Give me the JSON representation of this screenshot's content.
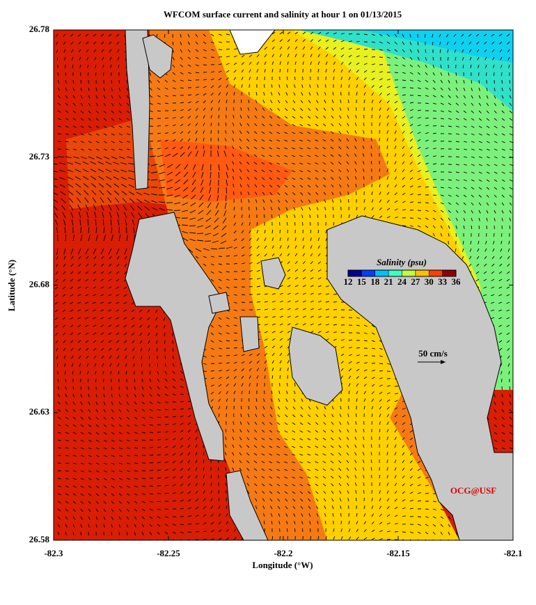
{
  "chart_data": {
    "type": "map",
    "title": "WFCOM surface current and salinity at hour 1 on 01/13/2015",
    "xlabel": "Longitude (°W)",
    "ylabel": "Latitude (°N)",
    "xlim": [
      -82.3,
      -82.1
    ],
    "ylim": [
      26.58,
      26.78
    ],
    "xticks": [
      -82.3,
      -82.25,
      -82.2,
      -82.15,
      -82.1
    ],
    "yticks": [
      26.58,
      26.63,
      26.68,
      26.73,
      26.78
    ],
    "colorbar": {
      "label": "Salinity (psu)",
      "ticks": [
        12,
        15,
        18,
        21,
        24,
        27,
        30,
        33,
        36
      ],
      "colors": [
        "#00008f",
        "#0040ff",
        "#00bfff",
        "#40ffbf",
        "#bfff40",
        "#ffbf00",
        "#ff4000",
        "#8f0000"
      ]
    },
    "annotations": [
      "50 cm/s",
      "OCG@USF"
    ]
  }
}
